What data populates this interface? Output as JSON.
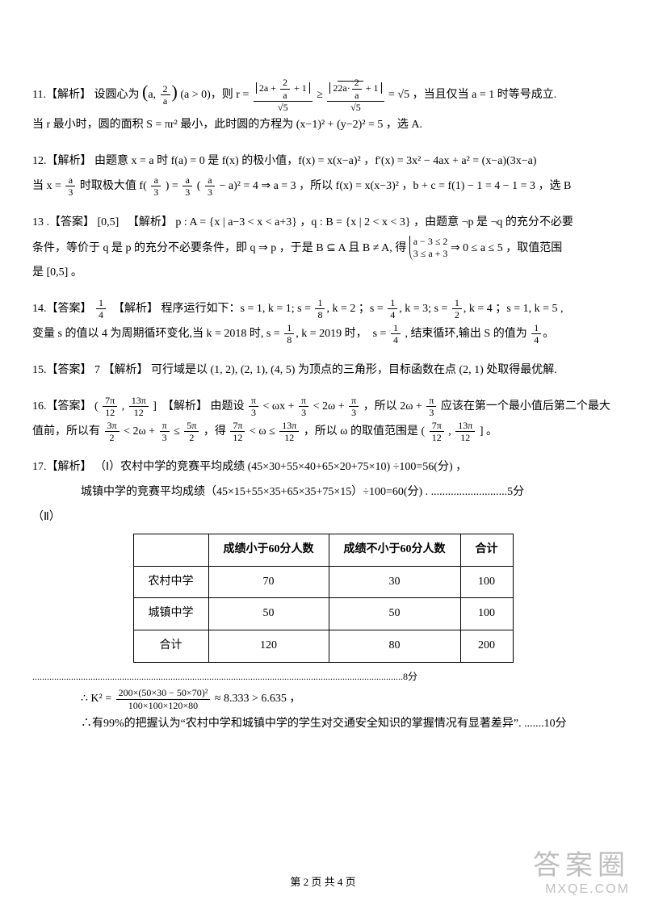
{
  "q11": {
    "label": "11.【解析】",
    "l1a": "设圆心为",
    "l1b": "(a > 0)，则 r =",
    "l1c": "，当且仅当 a = 1 时等号成立.",
    "frac_big": "(a, 2/a)",
    "mid_num1": "|2a + 2/a + 1|",
    "mid_den": "√5",
    "mid_num2": "|2√(2a·2/a) + 1|",
    "ge": " ≥ ",
    "eq": " = √5",
    "l2": "当 r 最小时，圆的面积 S = πr² 最小，此时圆的方程为 (x−1)² + (y−2)² = 5 ，选 A."
  },
  "q12": {
    "label": "12.【解析】",
    "l1": "由题意 x = a 时 f(a) = 0 是 f(x) 的极小值，f(x) = x(x−a)² ，f′(x) = 3x² − 4ax + a² = (x−a)(3x−a)",
    "l2a": "当 x = ",
    "l2b": " 时取极大值 f(",
    "l2c": ") = ",
    "l2d": "(",
    "l2e": " − a)² = 4 ⇒ a = 3 ，所以 f(x) = x(x−3)² ，b + c = f(1) − 1 = 4 − 1 = 3 ，选 B",
    "a3": "a/3"
  },
  "q13": {
    "label": "13 .【答案】",
    "ans": "[0,5]",
    "exp_label": "【解析】",
    "l1": "p : A = {x | a−3 < x < a+3} ，q : B = {x | 2 < x < 3} ，由题意 ¬p 是 ¬q 的充分不必要",
    "l2a": "条件，等价于 q 是 p 的充分不必要条件，即 q ⇒ p ，于是 B ⊆ A 且 B ≠ A, 得",
    "case1": "a − 3 ≤ 2",
    "case2": "3 ≤ a + 3",
    "l2b": " ⇒ 0 ≤ a ≤ 5 ，取值范围",
    "l3": "是 [0,5] 。"
  },
  "q14": {
    "label": "14.【答案】",
    "ans_n": "1",
    "ans_d": "4",
    "exp_label": "【解析】",
    "l1": "程序运行如下：s = 1, k = 1; s = 1/8, k = 2 ；s = 1/4, k = 3; s = 1/2, k = 4 ；s = 1, k = 5 ,",
    "l2a": "变量 s 的值以 4 为周期循环变化,当 k = 2018 时,",
    "l2b": "s = 1/8, k = 2019 时， s = 1/4",
    "l2c": " , 结束循环,输出 S 的值为 ",
    "l2d_n": "1",
    "l2d_d": "4",
    "dot": "。"
  },
  "q15": {
    "label": "15.【答案】",
    "ans": "7",
    "exp_label": "【解析】",
    "text": "可行域是以 (1, 2), (2, 1), (4, 5) 为顶点的三角形，目标函数在点 (2, 1) 处取得最优解."
  },
  "q16": {
    "label": "16.【答案】",
    "ans": "( 7π/12 , 13π/12 ]",
    "exp_label": "【解析】",
    "l1a": "由题设 ",
    "l1b": "π/3 < ωx + π/3 < 2ω + π/3",
    "l1c": " ，所以 ",
    "l1d": "2ω + π/3",
    "l1e": " 应该在第一个最小值后第二个最大",
    "l2a": "值前，所以有 ",
    "l2b": "3π/2 < 2ω + π/3 ≤ 5π/2",
    "l2c": " ，得 ",
    "l2d": "7π/12 < ω ≤ 13π/12",
    "l2e": " ，所以 ω 的取值范围是 ",
    "l2f": "( 7π/12 , 13π/12 ]",
    "l2g": " 。"
  },
  "q17": {
    "label": "17.【解析】",
    "l1": "（Ⅰ）农村中学的竞赛平均成绩 (45×30+55×40+65×20+75×10) ÷100=56(分) ，",
    "l2": "城镇中学的竞赛平均成绩（45×15+55×35+65×35+75×15）÷100=60(分) . ...........................5分",
    "part2": "（Ⅱ）",
    "table": {
      "headers": [
        "",
        "成绩小于60分人数",
        "成绩不小于60分人数",
        "合计"
      ],
      "rows": [
        [
          "农村中学",
          "70",
          "30",
          "100"
        ],
        [
          "城镇中学",
          "50",
          "50",
          "100"
        ],
        [
          "合计",
          "120",
          "80",
          "200"
        ]
      ]
    },
    "dots8": ".........................................................................................................................................................8分",
    "k2a": "∴ K² = ",
    "k2num": "200×(50×30 − 50×70)²",
    "k2den": "100×100×120×80",
    "k2b": " ≈ 8.333 > 6.635 ，",
    "concl": "∴有99%的把握认为“农村中学和城镇中学的学生对交通安全知识的掌握情况有显著差异”. .......10分"
  },
  "footer": "第 2 页 共 4 页",
  "watermark": {
    "l1": "答案圈",
    "l2": "MXQE.COM"
  }
}
